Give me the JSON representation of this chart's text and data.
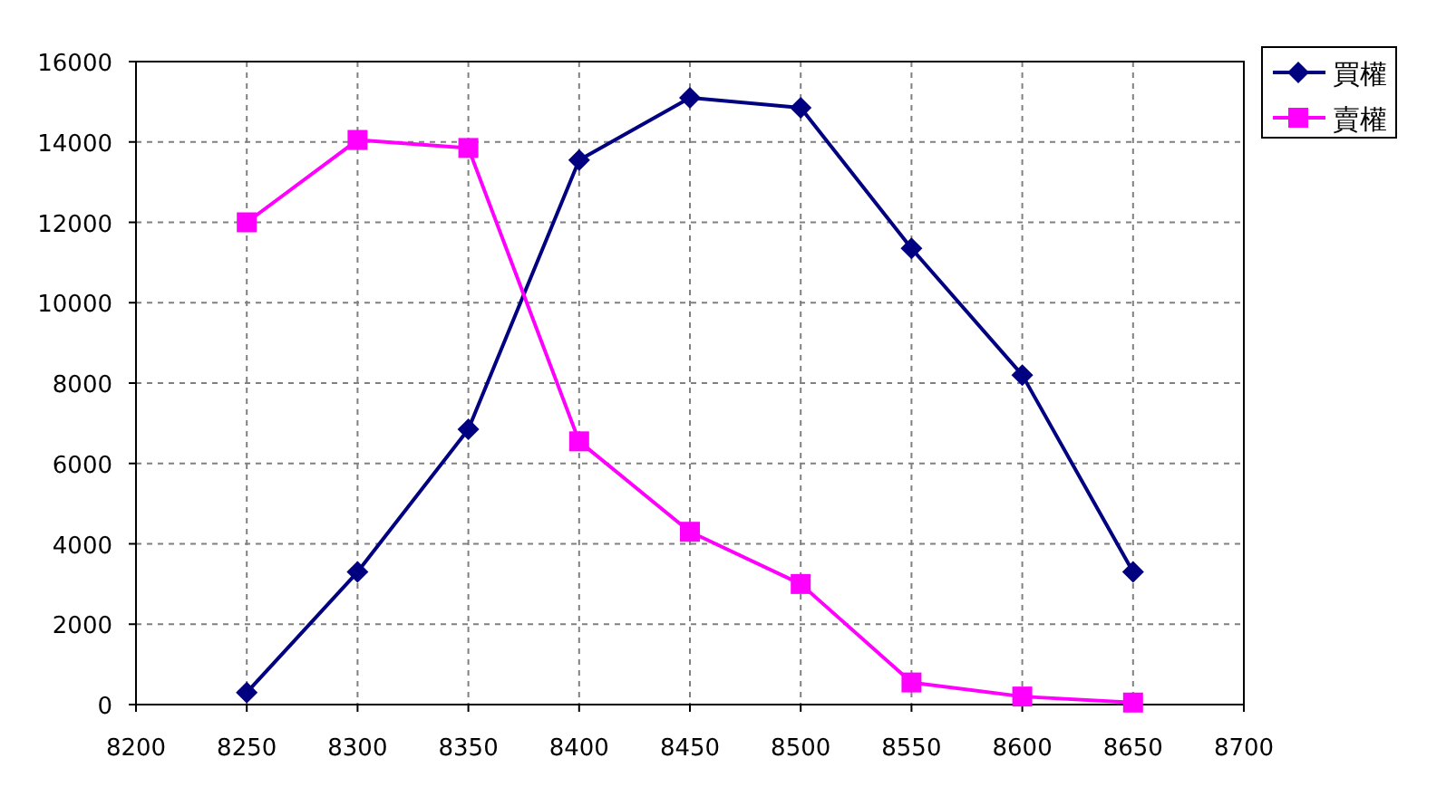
{
  "chart_data": {
    "type": "line",
    "x": [
      8250,
      8300,
      8350,
      8400,
      8450,
      8500,
      8550,
      8600,
      8650
    ],
    "series": [
      {
        "name": "買權",
        "color": "#000080",
        "marker": "diamond",
        "values": [
          300,
          3300,
          6850,
          13550,
          15100,
          14850,
          11350,
          8200,
          3300
        ]
      },
      {
        "name": "賣權",
        "color": "#ff00ff",
        "marker": "square",
        "values": [
          12000,
          14050,
          13850,
          6550,
          4300,
          3000,
          550,
          200,
          50
        ]
      }
    ],
    "xlim": [
      8200,
      8700
    ],
    "xticks": [
      8200,
      8250,
      8300,
      8350,
      8400,
      8450,
      8500,
      8550,
      8600,
      8650,
      8700
    ],
    "ylim": [
      0,
      16000
    ],
    "yticks": [
      0,
      2000,
      4000,
      6000,
      8000,
      10000,
      12000,
      14000,
      16000
    ],
    "grid": true,
    "legend": "top right",
    "line_style": "solid"
  }
}
